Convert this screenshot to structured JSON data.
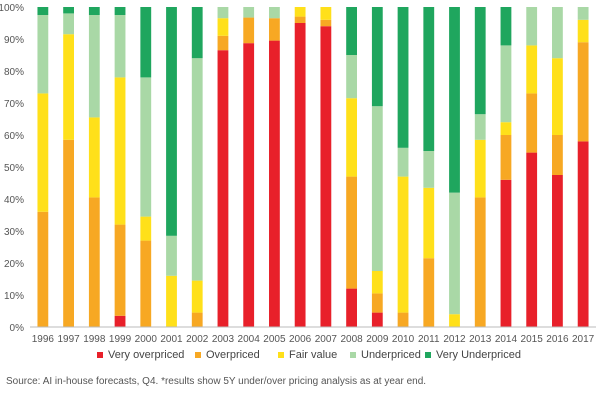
{
  "chart_data": {
    "type": "bar",
    "stacked": true,
    "percent": true,
    "ylim": [
      0,
      100
    ],
    "yticks": [
      "0%",
      "10%",
      "20%",
      "30%",
      "40%",
      "50%",
      "60%",
      "70%",
      "80%",
      "90%",
      "100%"
    ],
    "grid": false,
    "legend_position": "bottom",
    "categories": [
      "1996",
      "1997",
      "1998",
      "1999",
      "2000",
      "2001",
      "2002",
      "2003",
      "2004",
      "2005",
      "2006",
      "2007",
      "2008",
      "2009",
      "2010",
      "2011",
      "2012",
      "2013",
      "2014",
      "2015",
      "2016",
      "2017"
    ],
    "series": [
      {
        "name": "Very overpriced",
        "color": "#e8202a",
        "values": [
          0,
          0,
          0,
          3.5,
          0,
          0,
          0,
          86.5,
          88.7,
          89.5,
          95,
          94,
          12,
          4.5,
          0,
          0,
          0,
          0,
          46,
          54.5,
          47.5,
          58
        ]
      },
      {
        "name": "Overpriced",
        "color": "#f7a823",
        "values": [
          36,
          58.5,
          40.5,
          28.5,
          27,
          0,
          4.5,
          4.5,
          8,
          7,
          2,
          2,
          35,
          6,
          4.5,
          21.5,
          0,
          40.5,
          14,
          18.5,
          12.5,
          31
        ]
      },
      {
        "name": "Fair value",
        "color": "#ffe01a",
        "values": [
          37,
          33,
          25,
          46,
          7.5,
          16,
          10,
          5.5,
          0,
          0,
          3,
          4,
          24.5,
          7,
          42.5,
          22,
          4,
          18,
          4,
          15,
          24,
          7
        ]
      },
      {
        "name": "Underpriced",
        "color": "#a9d8a6",
        "values": [
          24.5,
          6.5,
          32,
          19.5,
          43.5,
          12.5,
          69.5,
          3.5,
          3.3,
          3.5,
          0,
          0,
          13.5,
          51.5,
          9,
          11.5,
          38,
          8,
          24,
          12,
          16,
          4
        ]
      },
      {
        "name": "Very Underpriced",
        "color": "#1fa65e",
        "values": [
          2.5,
          2,
          2.5,
          2.5,
          22,
          71.5,
          16,
          0,
          0,
          0,
          0,
          0,
          15,
          31,
          44,
          45,
          58,
          33.5,
          12,
          0,
          0,
          0
        ]
      }
    ]
  },
  "source_note": "Source: AI in-house forecasts, Q4. *results show 5Y under/over pricing analysis as at year end."
}
